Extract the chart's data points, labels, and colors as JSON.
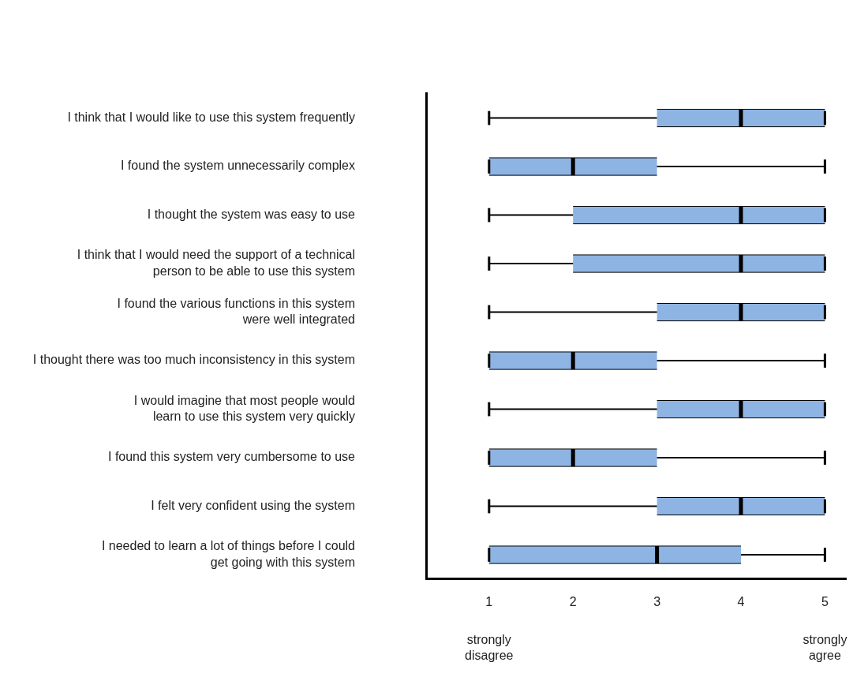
{
  "chart_data": {
    "type": "box",
    "orientation": "horizontal",
    "categories": [
      "I think that I would like to use this system frequently",
      "I found the system unnecessarily complex",
      "I thought the system was easy to use",
      "I think that I would need the support of a technical\nperson to be able to use this system",
      "I found the various functions in this system\nwere well integrated",
      "I thought there was too much inconsistency in this system",
      "I would imagine that most people would\nlearn to use this system very quickly",
      "I found this system very cumbersome to use",
      "I felt very confident using the system",
      "I needed to learn a lot of things before I could\nget going with this system"
    ],
    "series": [
      {
        "color": "#8eb4e3",
        "boxes": [
          {
            "low": 1,
            "q1": 3,
            "median": 4,
            "q3": 5,
            "high": 5
          },
          {
            "low": 1,
            "q1": 1,
            "median": 2,
            "q3": 3,
            "high": 5
          },
          {
            "low": 1,
            "q1": 2,
            "median": 4,
            "q3": 5,
            "high": 5
          },
          {
            "low": 1,
            "q1": 2,
            "median": 4,
            "q3": 5,
            "high": 5
          },
          {
            "low": 1,
            "q1": 3,
            "median": 4,
            "q3": 5,
            "high": 5
          },
          {
            "low": 1,
            "q1": 1,
            "median": 2,
            "q3": 3,
            "high": 5
          },
          {
            "low": 1,
            "q1": 3,
            "median": 4,
            "q3": 5,
            "high": 5
          },
          {
            "low": 1,
            "q1": 1,
            "median": 2,
            "q3": 3,
            "high": 5
          },
          {
            "low": 1,
            "q1": 3,
            "median": 4,
            "q3": 5,
            "high": 5
          },
          {
            "low": 1,
            "q1": 1,
            "median": 3,
            "q3": 4,
            "high": 5
          }
        ]
      }
    ],
    "xlim": [
      0.25,
      5.25
    ],
    "xticks": [
      1,
      2,
      3,
      4,
      5
    ],
    "annotations": [
      "strongly disagree",
      "strongly agree"
    ],
    "grid": false,
    "legend": false
  }
}
